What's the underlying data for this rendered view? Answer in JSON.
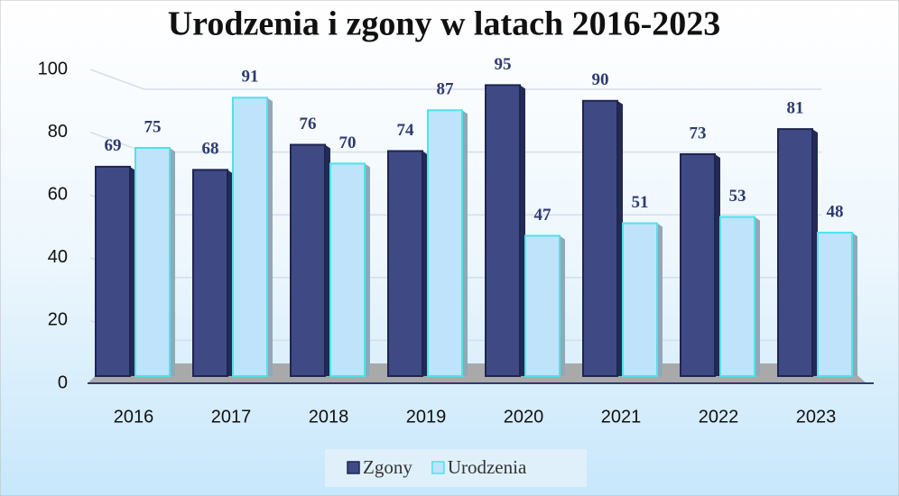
{
  "chart_data": {
    "type": "bar",
    "title": "Urodzenia i zgony w latach 2016-2023",
    "categories": [
      "2016",
      "2017",
      "2018",
      "2019",
      "2020",
      "2021",
      "2022",
      "2023"
    ],
    "series": [
      {
        "name": "Zgony",
        "color": "#3f4a85",
        "values": [
          69,
          68,
          76,
          74,
          95,
          90,
          73,
          81
        ]
      },
      {
        "name": "Urodzenia",
        "color": "#bfe3fb",
        "values": [
          75,
          91,
          70,
          87,
          47,
          51,
          53,
          48
        ]
      }
    ],
    "ylim": [
      0,
      100
    ],
    "yticks": [
      0,
      20,
      40,
      60,
      80,
      100
    ],
    "grid": true,
    "legend": "bottom"
  }
}
